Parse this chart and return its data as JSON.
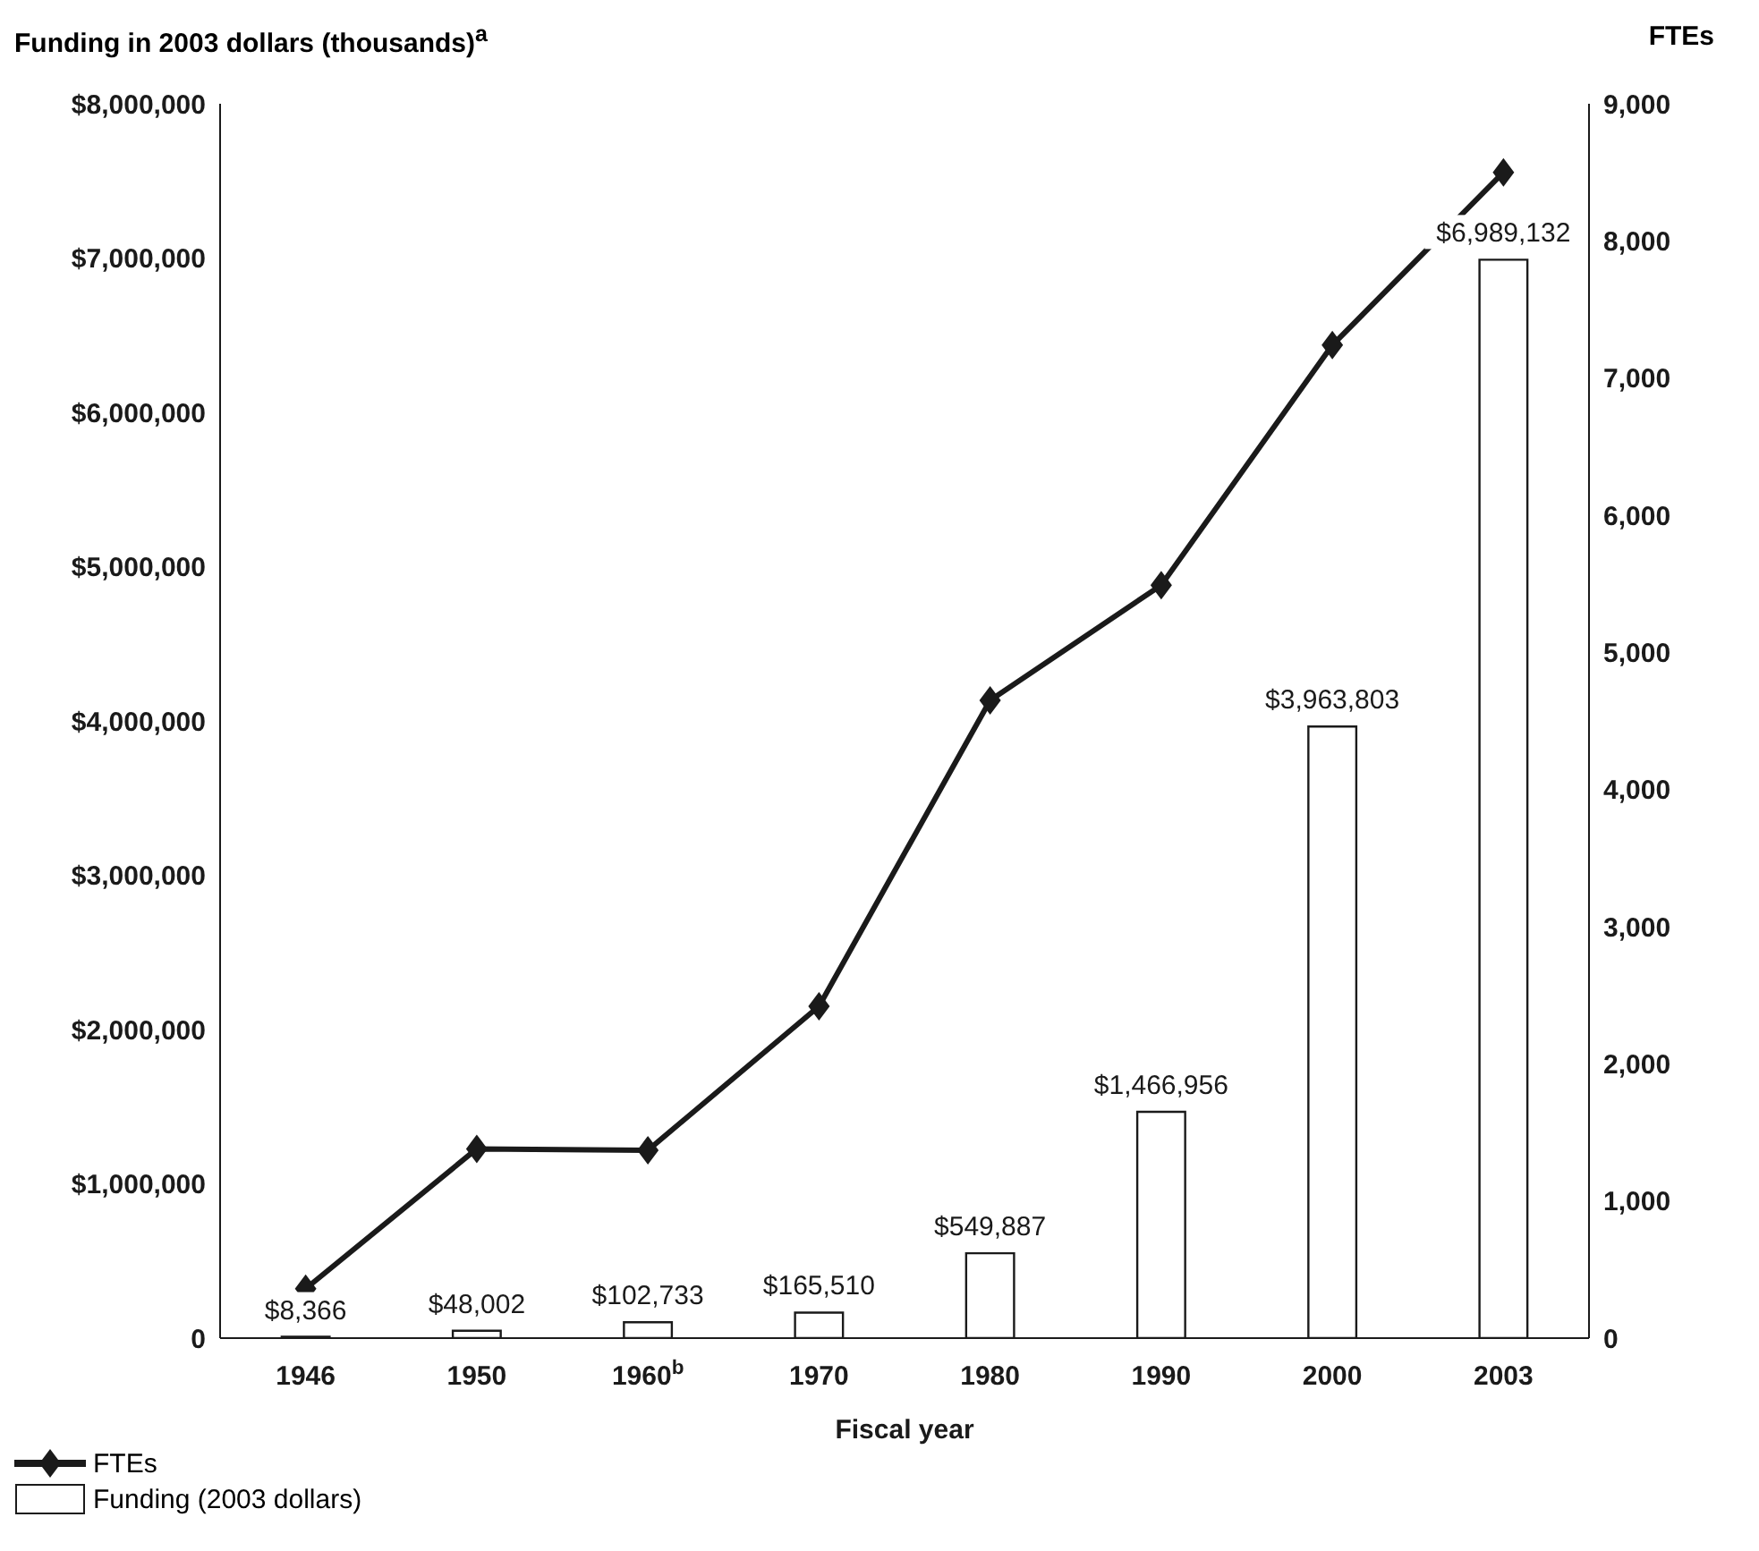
{
  "chart_data": {
    "type": "bar",
    "ylabel": "Funding in 2003 dollars (thousands)$^{a}$",
    "y2label": "FTEs",
    "xlabel": "Fiscal year",
    "categories": [
      "1946",
      "1950",
      "1960$^{b}$",
      "1970",
      "1980",
      "1990",
      "2000",
      "2003"
    ],
    "series": [
      {
        "name": "FTEs",
        "type": "line",
        "axis": "y2",
        "color": "#1a1a1a",
        "marker": "diamond",
        "values": [
          360,
          1380,
          1370,
          2420,
          4650,
          5490,
          7240,
          8500
        ]
      },
      {
        "name": "Funding (2003 dollars)",
        "color": "#ffffff",
        "values": [
          8366,
          48002,
          102733,
          165510,
          549887,
          1466956,
          3963803,
          6989132
        ],
        "value_labels": [
          "$8,366",
          "$48,002",
          "$102,733",
          "$165,510",
          "$549,887",
          "$1,466,956",
          "$3,963,803",
          "$6,989,132"
        ]
      }
    ],
    "ylim": [
      0,
      8000000
    ],
    "yticks": [
      {
        "value": 0,
        "label": "0"
      },
      {
        "value": 1000000,
        "label": "$1,000,000"
      },
      {
        "value": 2000000,
        "label": "$2,000,000"
      },
      {
        "value": 3000000,
        "label": "$3,000,000"
      },
      {
        "value": 4000000,
        "label": "$4,000,000"
      },
      {
        "value": 5000000,
        "label": "$5,000,000"
      },
      {
        "value": 6000000,
        "label": "$6,000,000"
      },
      {
        "value": 7000000,
        "label": "$7,000,000"
      },
      {
        "value": 8000000,
        "label": "$8,000,000"
      }
    ],
    "y2lim": [
      0,
      9000
    ],
    "y2ticks": [
      {
        "value": 0,
        "label": "0"
      },
      {
        "value": 1000,
        "label": "1,000"
      },
      {
        "value": 2000,
        "label": "2,000"
      },
      {
        "value": 3000,
        "label": "3,000"
      },
      {
        "value": 4000,
        "label": "4,000"
      },
      {
        "value": 5000,
        "label": "5,000"
      },
      {
        "value": 6000,
        "label": "6,000"
      },
      {
        "value": 7000,
        "label": "7,000"
      },
      {
        "value": 8000,
        "label": "8,000"
      },
      {
        "value": 9000,
        "label": "9,000"
      }
    ],
    "grid": false,
    "legend": "bottom left"
  }
}
